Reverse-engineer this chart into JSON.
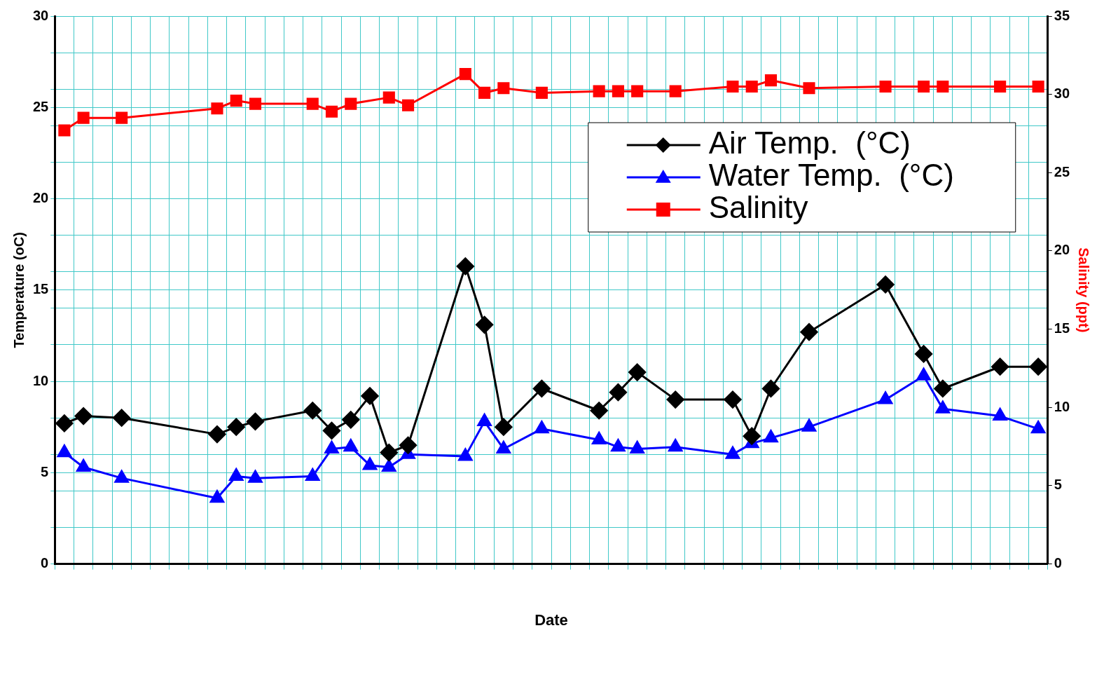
{
  "chart_data": {
    "type": "line",
    "xlabel": "Date",
    "ylabel": "Temperature (oC)",
    "y2label": "Salinity (ppt)",
    "categories": [
      null,
      null,
      null,
      null,
      null,
      null,
      null,
      null,
      null,
      null,
      null,
      null,
      null,
      null,
      null,
      null,
      null,
      null,
      null,
      null,
      null,
      null,
      null,
      null,
      null,
      null,
      null,
      null,
      null,
      null,
      null,
      null,
      null,
      null,
      null,
      null,
      null,
      null,
      null,
      null,
      null,
      null,
      null,
      null,
      null,
      null,
      null,
      null,
      null,
      null,
      null,
      null
    ],
    "ylim": [
      0,
      30
    ],
    "yticks": [
      0,
      {
        "value": 2,
        "label": null
      },
      {
        "value": 4,
        "label": null
      },
      5,
      {
        "value": 6,
        "label": null
      },
      {
        "value": 8,
        "label": null
      },
      10,
      {
        "value": 12,
        "label": null
      },
      {
        "value": 14,
        "label": null
      },
      15,
      {
        "value": 16,
        "label": null
      },
      {
        "value": 18,
        "label": null
      },
      20,
      {
        "value": 22,
        "label": null
      },
      {
        "value": 24,
        "label": null
      },
      25,
      {
        "value": 26,
        "label": null
      },
      {
        "value": 28,
        "label": null
      },
      30
    ],
    "y2lim": [
      0,
      35
    ],
    "y2ticks": [
      0,
      5,
      10,
      15,
      20,
      25,
      30,
      35
    ],
    "grid": true,
    "legend": "top right",
    "line_style": "solid",
    "series": [
      {
        "name": "Air Temp.  (°C)",
        "color": "#000000",
        "marker": "diamond",
        "values": [
          7.7,
          8.1,
          null,
          8.0,
          null,
          null,
          null,
          null,
          7.1,
          7.5,
          7.8,
          null,
          null,
          8.4,
          7.3,
          7.9,
          9.2,
          6.1,
          6.5,
          null,
          null,
          16.3,
          13.1,
          7.5,
          null,
          9.6,
          null,
          null,
          8.4,
          9.4,
          10.5,
          null,
          9.0,
          null,
          null,
          9.0,
          7.0,
          9.6,
          null,
          12.7,
          null,
          null,
          null,
          15.3,
          null,
          11.5,
          9.6,
          null,
          null,
          10.8,
          null,
          10.8
        ]
      },
      {
        "name": "Water Temp.  (°C)",
        "color": "#0000ff",
        "marker": "triangle",
        "values": [
          6.1,
          5.3,
          null,
          4.7,
          null,
          null,
          null,
          null,
          3.6,
          4.8,
          4.7,
          null,
          null,
          4.8,
          6.3,
          6.4,
          5.4,
          5.3,
          6.0,
          null,
          null,
          5.9,
          7.8,
          6.3,
          null,
          7.4,
          null,
          null,
          6.8,
          6.4,
          6.3,
          null,
          6.4,
          null,
          null,
          6.0,
          6.6,
          6.9,
          null,
          7.5,
          null,
          null,
          null,
          9.0,
          null,
          10.3,
          8.5,
          null,
          null,
          8.1,
          null,
          7.4
        ]
      },
      {
        "name": "Salinity",
        "color": "#ff0000",
        "marker": "square",
        "axis": "y2",
        "values": [
          27.7,
          28.5,
          null,
          28.5,
          null,
          null,
          null,
          null,
          29.1,
          29.6,
          29.4,
          null,
          null,
          29.4,
          28.9,
          29.4,
          null,
          29.8,
          29.3,
          null,
          null,
          31.3,
          30.1,
          30.4,
          null,
          30.1,
          null,
          null,
          30.2,
          30.2,
          30.2,
          null,
          30.2,
          null,
          null,
          30.5,
          30.5,
          30.9,
          null,
          30.4,
          null,
          null,
          null,
          30.5,
          null,
          30.5,
          30.5,
          null,
          null,
          30.5,
          null,
          30.5
        ]
      }
    ]
  }
}
